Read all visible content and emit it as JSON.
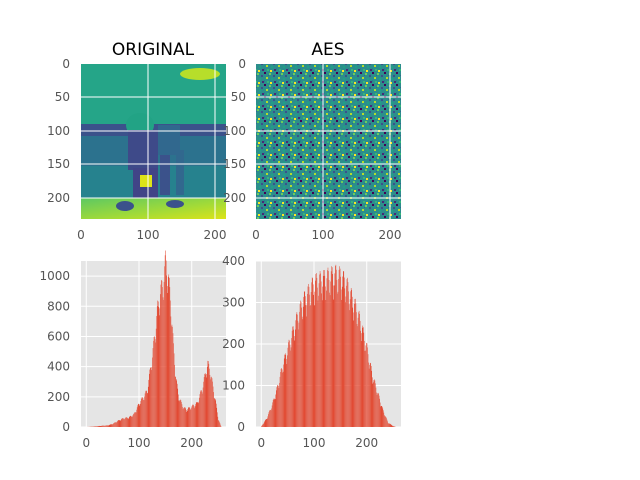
{
  "chart_data": [
    {
      "type": "heatmap",
      "title": "ORIGINAL",
      "xlim": [
        0,
        213
      ],
      "ylim": [
        232,
        0
      ],
      "xticks": [
        "0",
        "100",
        "200"
      ],
      "yticks": [
        "0",
        "50",
        "100",
        "150",
        "200"
      ],
      "colormap": "viridis",
      "grid": true
    },
    {
      "type": "heatmap",
      "title": "AES",
      "xlim": [
        0,
        213
      ],
      "ylim": [
        232,
        0
      ],
      "xticks": [
        "0",
        "100",
        "200"
      ],
      "yticks": [
        "0",
        "50",
        "100",
        "150",
        "200"
      ],
      "colormap": "viridis",
      "grid": true
    },
    {
      "type": "bar",
      "title": "",
      "xlim": [
        -10,
        265
      ],
      "ylim": [
        0,
        1100
      ],
      "xticks": [
        "0",
        "100",
        "200"
      ],
      "yticks": [
        "0",
        "200",
        "400",
        "600",
        "800",
        "1000"
      ],
      "color": "#E24A33",
      "grid": true,
      "x": [
        0,
        10,
        20,
        30,
        40,
        50,
        60,
        70,
        80,
        90,
        100,
        110,
        115,
        120,
        125,
        130,
        135,
        140,
        145,
        150,
        155,
        160,
        165,
        170,
        175,
        180,
        185,
        190,
        200,
        210,
        220,
        225,
        230,
        235,
        240,
        245,
        250,
        255
      ],
      "values": [
        0,
        2,
        5,
        8,
        10,
        20,
        40,
        55,
        60,
        80,
        150,
        200,
        230,
        340,
        450,
        600,
        750,
        850,
        900,
        1050,
        950,
        780,
        500,
        300,
        190,
        150,
        120,
        110,
        130,
        150,
        250,
        330,
        400,
        350,
        250,
        160,
        50,
        5
      ]
    },
    {
      "type": "bar",
      "title": "",
      "xlim": [
        -10,
        265
      ],
      "ylim": [
        0,
        400
      ],
      "xticks": [
        "0",
        "100",
        "200"
      ],
      "yticks": [
        "0",
        "100",
        "200",
        "300",
        "400"
      ],
      "color": "#E24A33",
      "grid": true,
      "x": [
        0,
        10,
        20,
        30,
        40,
        50,
        60,
        70,
        80,
        90,
        100,
        110,
        120,
        130,
        140,
        150,
        160,
        170,
        180,
        190,
        200,
        210,
        220,
        230,
        240,
        250,
        255
      ],
      "values": [
        2,
        20,
        50,
        90,
        140,
        180,
        220,
        260,
        290,
        310,
        330,
        335,
        340,
        345,
        350,
        345,
        330,
        300,
        270,
        230,
        180,
        120,
        80,
        40,
        10,
        2,
        0
      ]
    }
  ]
}
